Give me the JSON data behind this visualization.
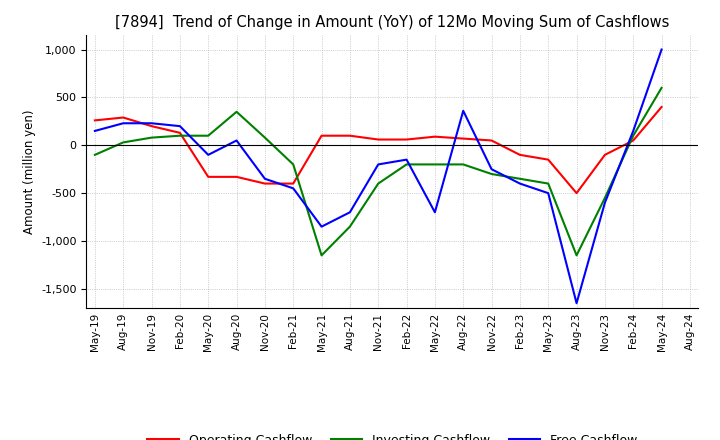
{
  "title": "[7894]  Trend of Change in Amount (YoY) of 12Mo Moving Sum of Cashflows",
  "ylabel": "Amount (million yen)",
  "ylim": [
    -1700,
    1150
  ],
  "yticks": [
    -1500,
    -1000,
    -500,
    0,
    500,
    1000
  ],
  "x_labels": [
    "May-19",
    "Aug-19",
    "Nov-19",
    "Feb-20",
    "May-20",
    "Aug-20",
    "Nov-20",
    "Feb-21",
    "May-21",
    "Aug-21",
    "Nov-21",
    "Feb-22",
    "May-22",
    "Aug-22",
    "Nov-22",
    "Feb-23",
    "May-23",
    "Aug-23",
    "Nov-23",
    "Feb-24",
    "May-24",
    "Aug-24"
  ],
  "operating": [
    260,
    290,
    200,
    130,
    -330,
    -330,
    -400,
    -400,
    100,
    100,
    60,
    60,
    90,
    70,
    50,
    -100,
    -150,
    -500,
    -100,
    50,
    400,
    null
  ],
  "investing": [
    -100,
    30,
    80,
    100,
    100,
    350,
    80,
    -200,
    -1150,
    -850,
    -400,
    -200,
    -200,
    -200,
    -300,
    -350,
    -400,
    -1150,
    -550,
    100,
    600,
    null
  ],
  "free": [
    150,
    230,
    230,
    200,
    -100,
    50,
    -350,
    -450,
    -850,
    -700,
    -200,
    -150,
    -700,
    360,
    -250,
    -400,
    -500,
    -1650,
    -600,
    150,
    1000,
    null
  ],
  "operating_color": "#ff0000",
  "investing_color": "#008000",
  "free_color": "#0000ff",
  "bg_color": "#ffffff",
  "grid_color": "#aaaaaa"
}
